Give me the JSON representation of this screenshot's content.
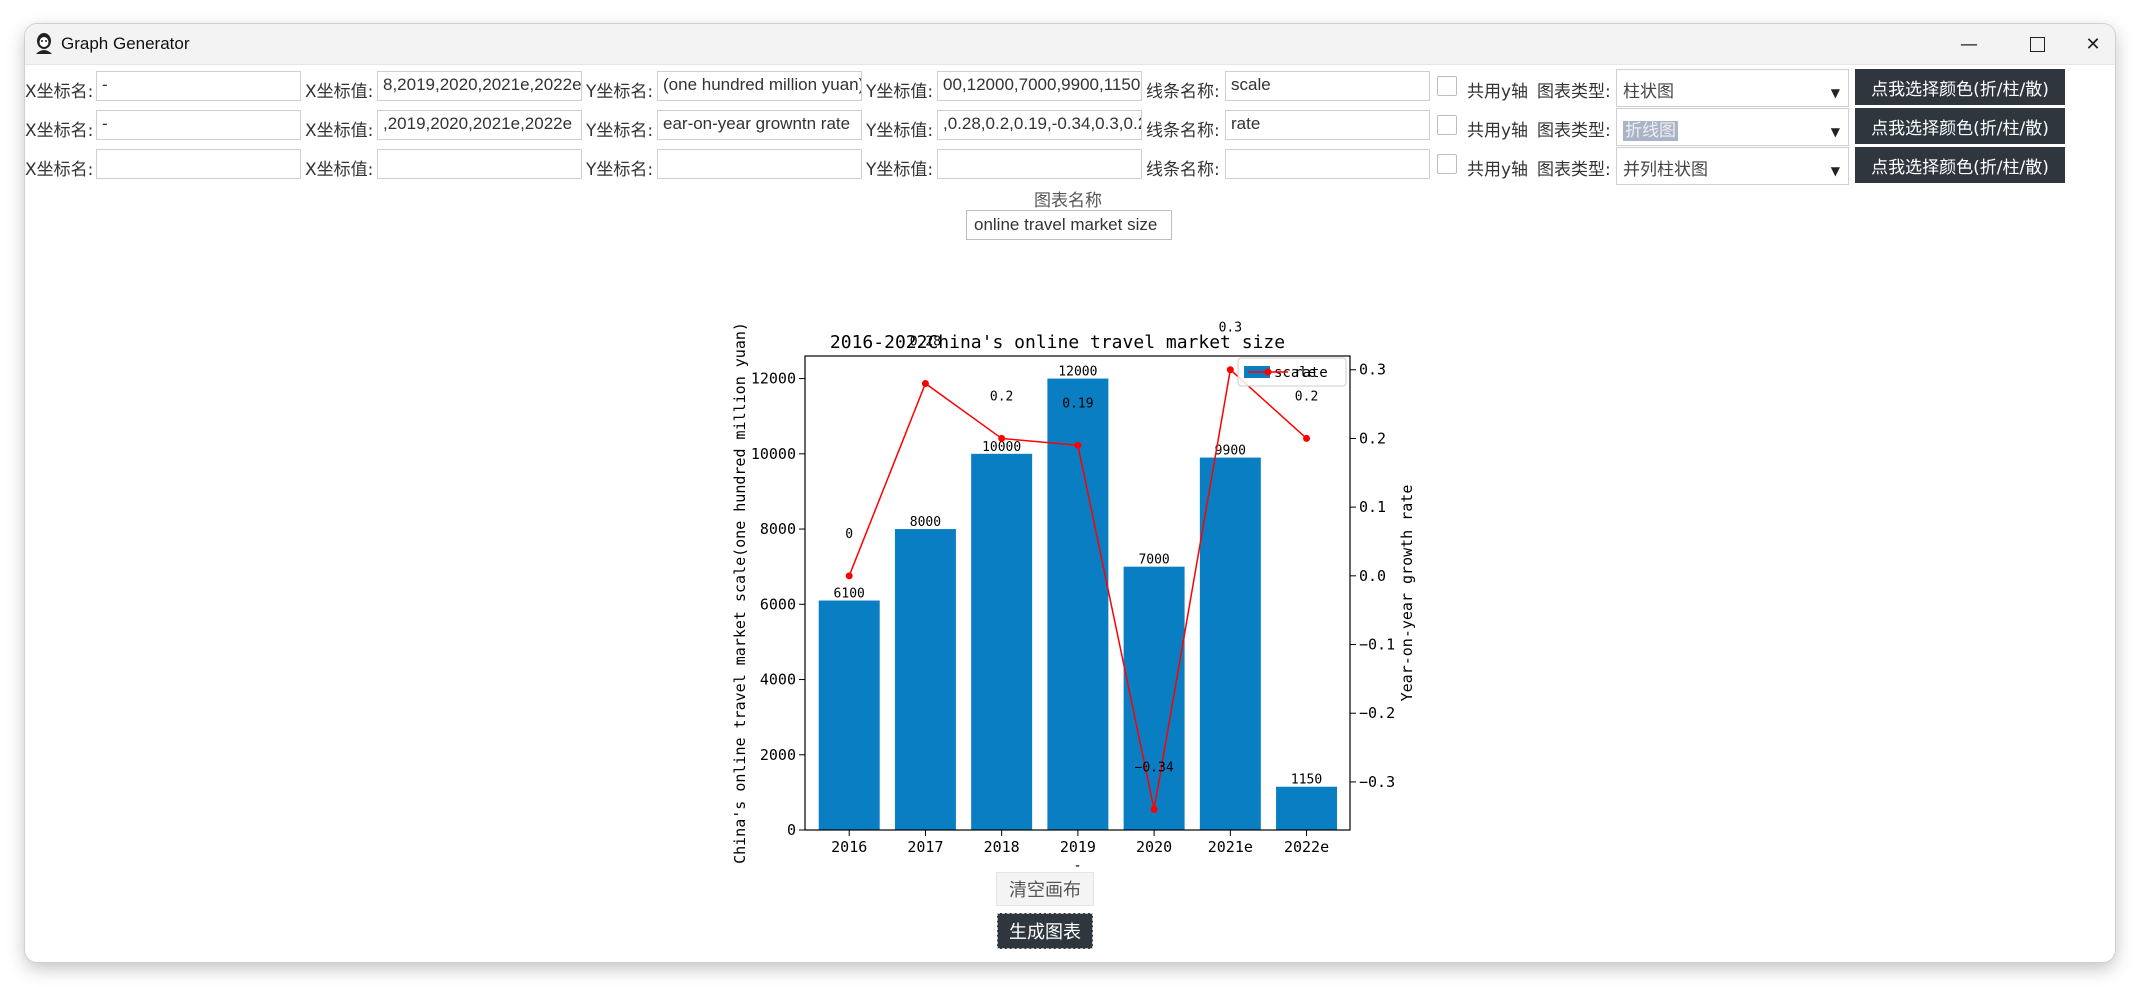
{
  "window": {
    "title": "Graph Generator",
    "minimize_icon": "minimize-icon",
    "maximize_icon": "maximize-icon",
    "close_icon": "close-icon"
  },
  "labels": {
    "x_name": "X坐标名:",
    "x_values": "X坐标值:",
    "y_name": "Y坐标名:",
    "y_values": "Y坐标值:",
    "line_name": "线条名称:",
    "share_y": "共用y轴",
    "chart_type": "图表类型:",
    "color_button": "点我选择颜色(折/柱/散)"
  },
  "rows": [
    {
      "x_name": "-",
      "x_values": "8,2019,2020,2021e,2022e",
      "y_name": "(one hundred million yuan)",
      "y_values": "00,12000,7000,9900,1150",
      "line_name": "scale",
      "chart_type": "柱状图"
    },
    {
      "x_name": "-",
      "x_values": ",2019,2020,2021e,2022e",
      "y_name": "ear-on-year growntn rate",
      "y_values": ",0.28,0.2,0.19,-0.34,0.3,0.2",
      "line_name": "rate",
      "chart_type": "折线图"
    },
    {
      "x_name": "",
      "x_values": "",
      "y_name": "",
      "y_values": "",
      "line_name": "",
      "chart_type": "并列柱状图"
    }
  ],
  "chart_name": {
    "label": "图表名称",
    "value": "online travel market size"
  },
  "buttons": {
    "clear": "清空画布",
    "generate": "生成图表"
  },
  "colors": {
    "bar": "#0a7ec2",
    "line": "#ff0000",
    "dark_button": "#2f363d"
  },
  "chart_data": {
    "type": "bar",
    "title": "2016-2022China's online travel market size",
    "categories": [
      "2016",
      "2017",
      "2018",
      "2019",
      "2020",
      "2021e",
      "2022e"
    ],
    "xlabel": "-",
    "series": [
      {
        "name": "scale",
        "type": "bar",
        "axis": "left",
        "values": [
          6100,
          8000,
          10000,
          12000,
          7000,
          9900,
          1150
        ]
      },
      {
        "name": "rate",
        "type": "line",
        "axis": "right",
        "values": [
          0.0,
          0.28,
          0.2,
          0.19,
          -0.34,
          0.3,
          0.2
        ]
      }
    ],
    "ylabel_left": "China's online travel market scale(one hundred million yuan)",
    "ylabel_right": "Year-on-year growth rate",
    "ylim_left": [
      0,
      12600
    ],
    "ylim_right": [
      -0.37,
      0.32
    ],
    "yticks_left": [
      "0",
      "2000",
      "4000",
      "6000",
      "8000",
      "10000",
      "12000"
    ],
    "yticks_right": [
      "-0.3",
      "-0.2",
      "-0.1",
      "0.0",
      "0.1",
      "0.2",
      "0.3"
    ],
    "legend": "top-right",
    "grid": false
  }
}
